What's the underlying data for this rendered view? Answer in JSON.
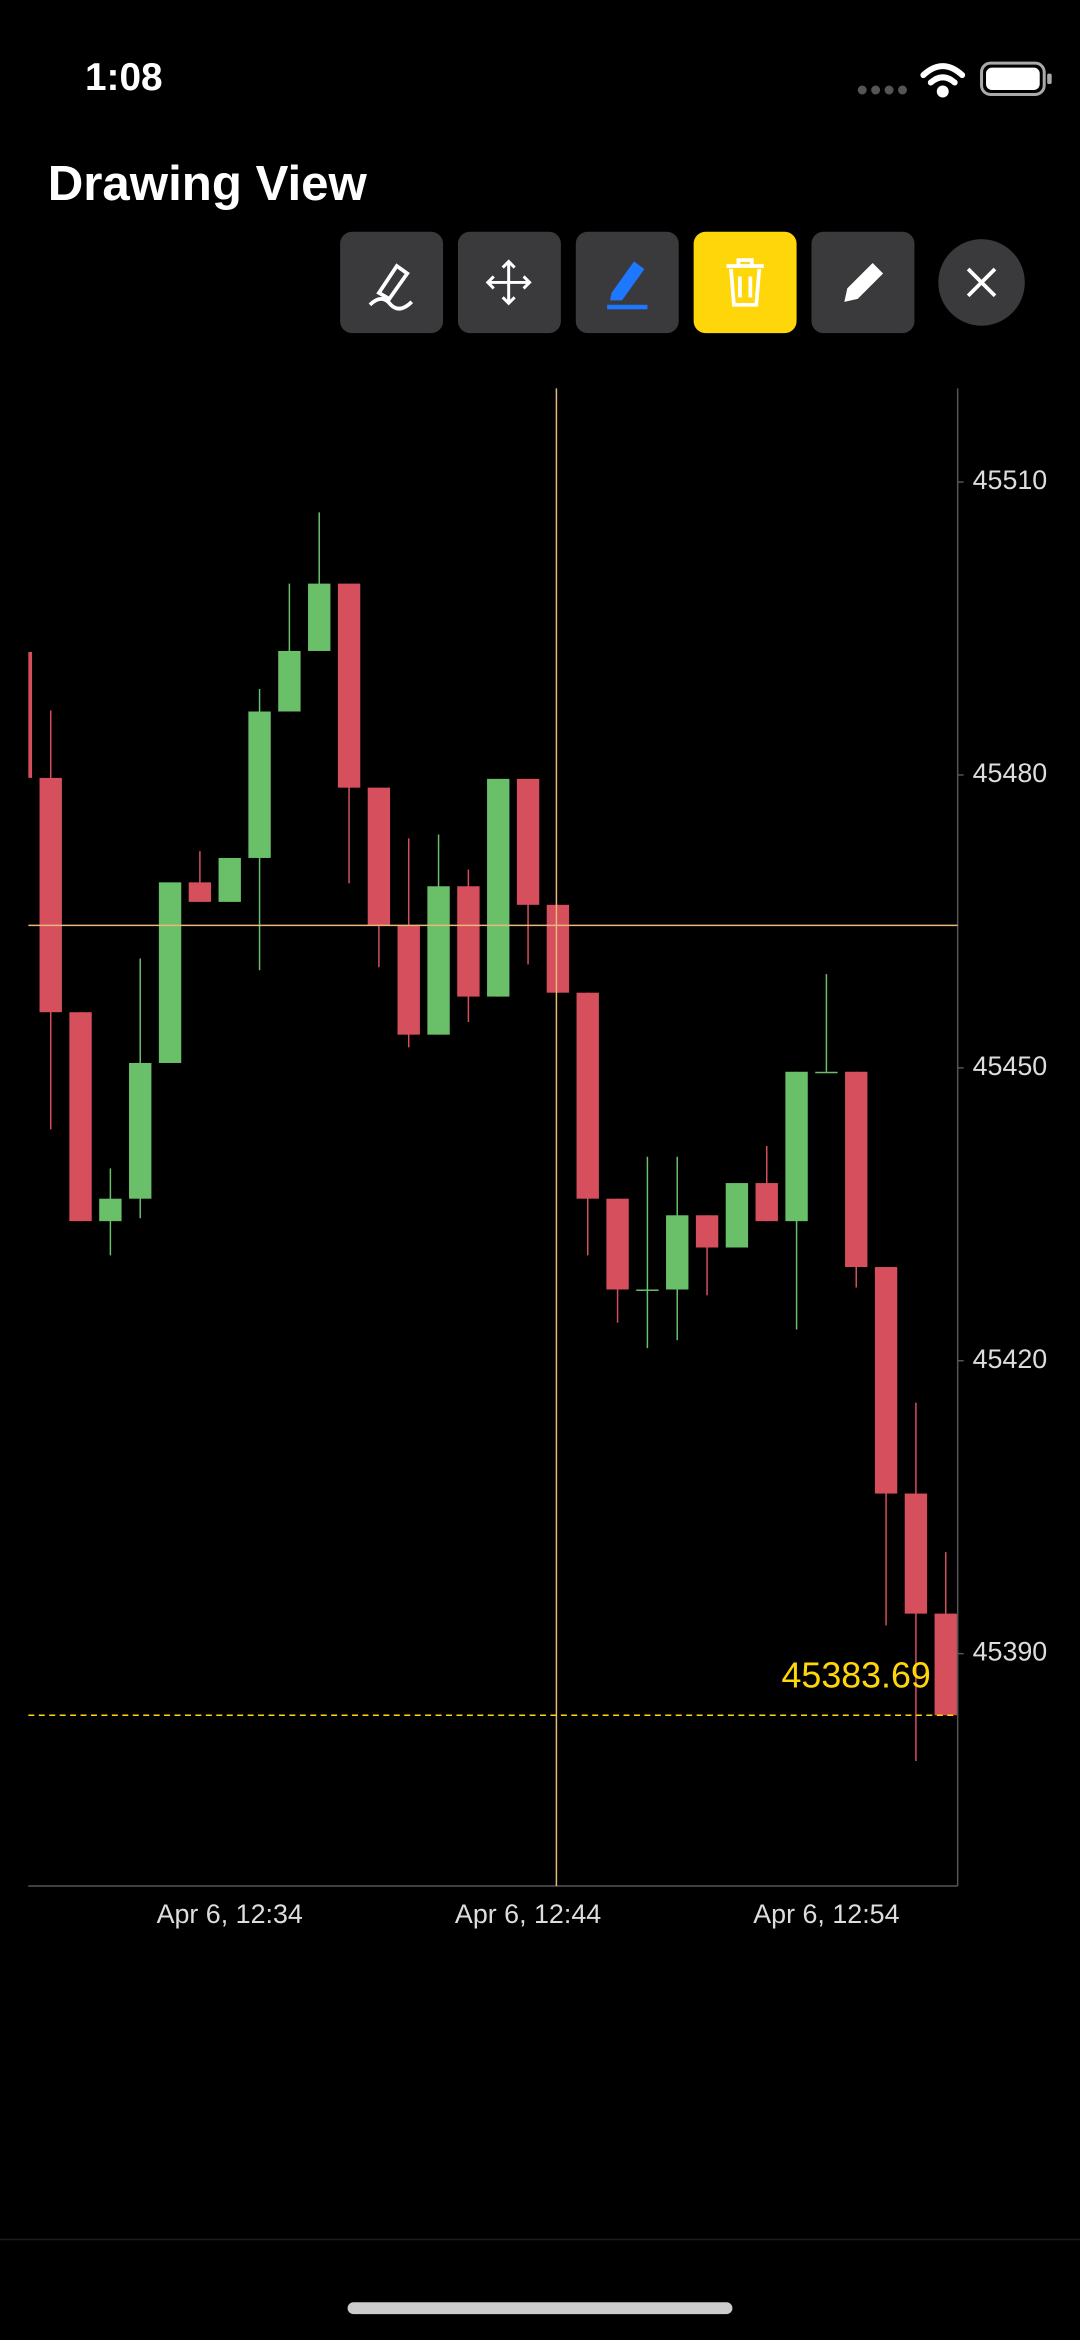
{
  "status_bar": {
    "time": "1:08"
  },
  "header": {
    "title": "Drawing View"
  },
  "chart_data": {
    "type": "candlestick",
    "categories": [
      null,
      null,
      null,
      null,
      null,
      null,
      null,
      "Apr 6, 12:34",
      null,
      null,
      null,
      null,
      null,
      null,
      null,
      null,
      null,
      "Apr 6, 12:44",
      null,
      null,
      null,
      null,
      null,
      null,
      null,
      null,
      null,
      "Apr 6, 12:54",
      null,
      null,
      null,
      null
    ],
    "open": [
      45492.6,
      45479.7,
      45455.7,
      45434.3,
      45436.6,
      45450.5,
      45469.0,
      45467.0,
      45471.5,
      45486.5,
      45492.7,
      45499.6,
      45478.7,
      45464.6,
      45453.4,
      45468.6,
      45457.3,
      45479.6,
      45466.7,
      45457.7,
      45436.6,
      45427.3,
      45427.3,
      45434.9,
      45431.6,
      45438.2,
      45434.3,
      45449.6,
      45449.6,
      45429.6,
      45406.4,
      45394.1
    ],
    "close": [
      45479.7,
      45455.7,
      45434.3,
      45436.6,
      45450.5,
      45469.0,
      45467.0,
      45471.5,
      45486.5,
      45492.7,
      45499.6,
      45478.7,
      45464.6,
      45453.4,
      45468.6,
      45457.3,
      45479.6,
      45466.7,
      45457.7,
      45436.6,
      45427.3,
      45427.3,
      45434.9,
      45431.6,
      45438.2,
      45434.3,
      45449.6,
      45449.6,
      45429.6,
      45406.4,
      45394.1,
      45383.69
    ],
    "high": [
      45492.6,
      45486.6,
      45455.7,
      45439.7,
      45461.2,
      45469.0,
      45472.2,
      45471.5,
      45488.8,
      45499.6,
      45506.9,
      45499.6,
      45478.7,
      45473.5,
      45473.9,
      45470.3,
      45479.6,
      45479.6,
      45466.7,
      45457.7,
      45436.6,
      45440.9,
      45440.9,
      45434.9,
      45438.2,
      45442.0,
      45449.6,
      45459.6,
      45449.6,
      45429.6,
      45415.7,
      45400.4
    ],
    "low": [
      45479.7,
      45443.7,
      45434.3,
      45430.8,
      45434.6,
      45450.5,
      45467.0,
      45467.0,
      45460.0,
      45486.5,
      45492.7,
      45468.9,
      45460.3,
      45452.1,
      45453.4,
      45454.7,
      45457.3,
      45460.6,
      45457.7,
      45430.8,
      45423.9,
      45421.3,
      45422.1,
      45426.7,
      45431.6,
      45434.3,
      45423.2,
      45449.6,
      45427.5,
      45392.9,
      45379.0,
      45383.69
    ],
    "up_color": "#6abf69",
    "down_color": "#d64f5d",
    "ylim": [
      45366.2,
      45519.6
    ],
    "yticks": [
      45390,
      45420,
      45450,
      45480,
      45510
    ],
    "last_price": 45383.69,
    "last_price_color": "#ffd60a"
  }
}
